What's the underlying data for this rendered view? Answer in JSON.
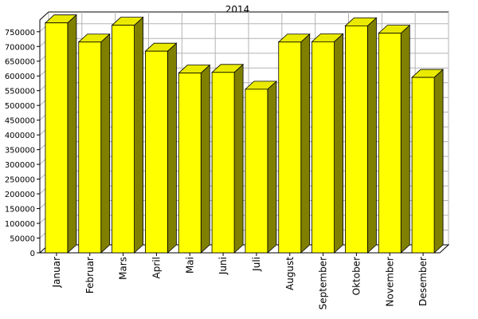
{
  "chart_data": {
    "type": "bar",
    "title": "2014",
    "xlabel": "",
    "ylabel": "",
    "ylim": [
      0,
      790000
    ],
    "yticks": [
      0,
      50000,
      100000,
      150000,
      200000,
      250000,
      300000,
      350000,
      400000,
      450000,
      500000,
      550000,
      600000,
      650000,
      700000,
      750000
    ],
    "ytick_labels": [
      "0",
      "50000",
      "100000",
      "150000",
      "200000",
      "250000",
      "300000",
      "350000",
      "400000",
      "450000",
      "500000",
      "550000",
      "600000",
      "650000",
      "700000",
      "750000"
    ],
    "categories": [
      "Januar",
      "Februar",
      "Mars",
      "April",
      "Mai",
      "Juni",
      "Juli",
      "August",
      "September",
      "Oktober",
      "November",
      "Desember"
    ],
    "values": [
      780000,
      715000,
      772000,
      684000,
      610000,
      612000,
      555000,
      715000,
      716000,
      770000,
      745000,
      595000
    ],
    "grid": true,
    "style": "3d",
    "colors": {
      "bar_front": "#ffff00",
      "bar_top": "#eaea00",
      "bar_side": "#808000",
      "bar_edge": "#000000",
      "grid": "#b4b4b4",
      "floor": "#ffffff"
    }
  }
}
